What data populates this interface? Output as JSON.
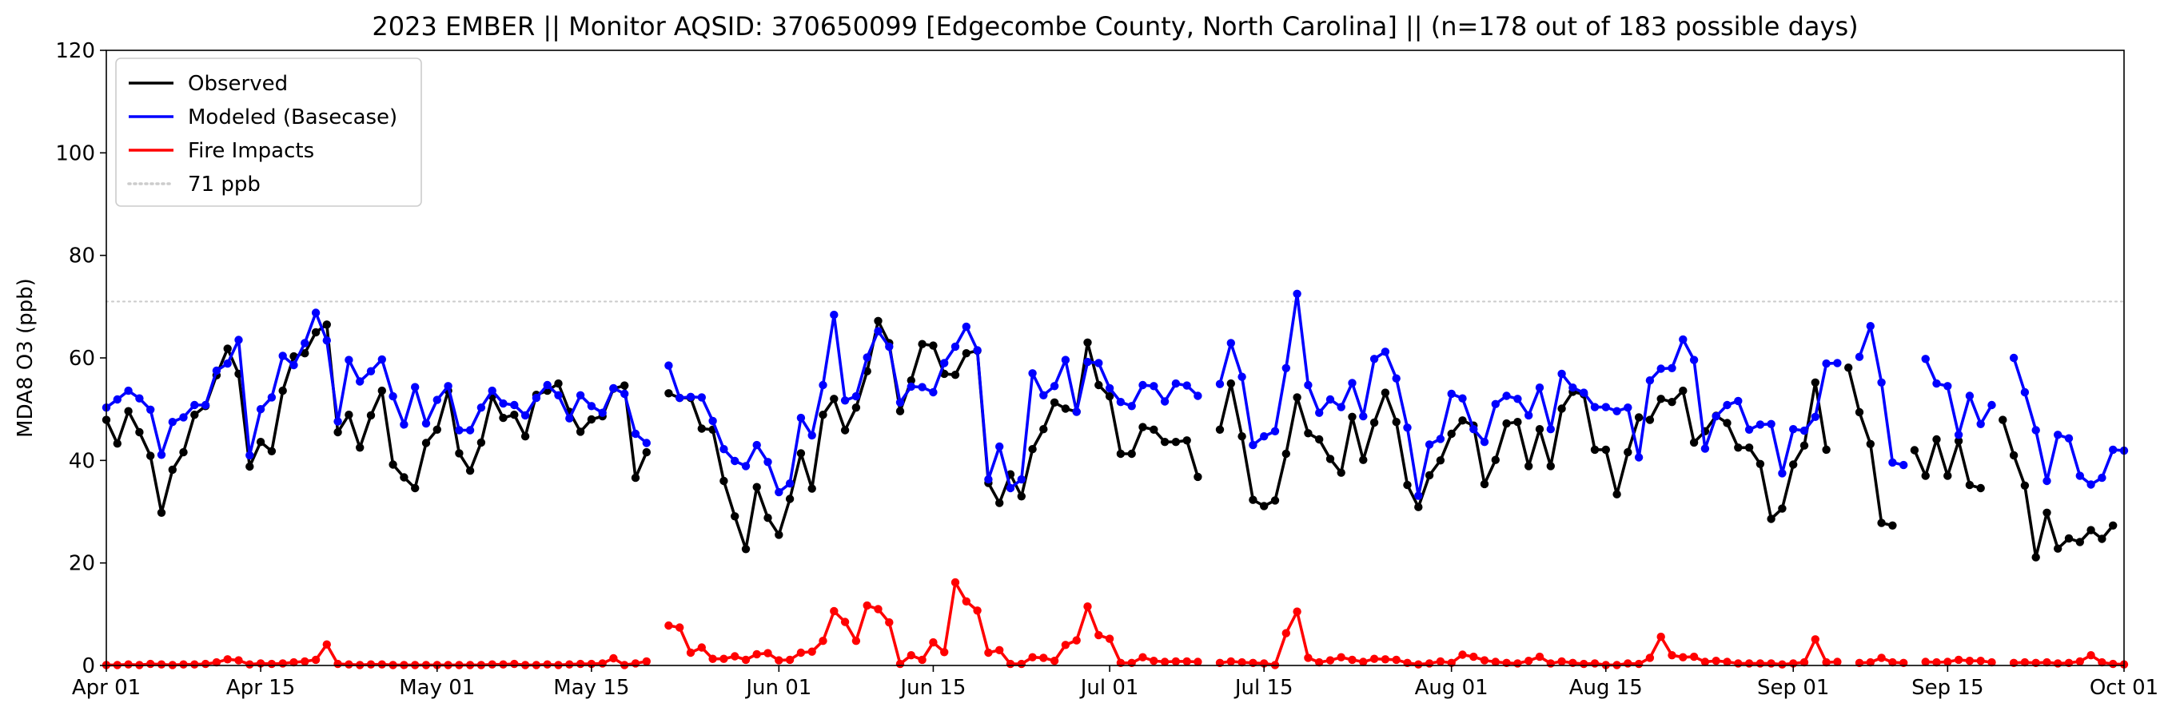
{
  "chart_data": {
    "type": "line",
    "title": "2023 EMBER || Monitor AQSID: 370650099 [Edgecombe County, North Carolina] || (n=178 out of 183 possible days)",
    "xlabel": "",
    "ylabel": "MDA8 O3 (ppb)",
    "ylim": [
      0,
      120
    ],
    "yticks": [
      0,
      20,
      40,
      60,
      80,
      100,
      120
    ],
    "xlim": [
      "2023-04-01",
      "2023-10-01"
    ],
    "xticks": [
      "Apr 01",
      "Apr 15",
      "May 01",
      "May 15",
      "Jun 01",
      "Jun 15",
      "Jul 01",
      "Jul 15",
      "Aug 01",
      "Aug 15",
      "Sep 01",
      "Sep 15",
      "Oct 01"
    ],
    "xtick_dates": [
      "2023-04-01",
      "2023-04-15",
      "2023-05-01",
      "2023-05-15",
      "2023-06-01",
      "2023-06-15",
      "2023-07-01",
      "2023-07-15",
      "2023-08-01",
      "2023-08-15",
      "2023-09-01",
      "2023-09-15",
      "2023-10-01"
    ],
    "grid": false,
    "legend_position": "top-left",
    "x_start_date": "2023-04-01",
    "reference_line": {
      "name": "71 ppb",
      "value": 71,
      "color": "#cccccc"
    },
    "series": [
      {
        "name": "Observed",
        "color": "#000000",
        "values": [
          47.9,
          43.3,
          49.6,
          45.5,
          40.9,
          29.8,
          38.2,
          41.6,
          48.9,
          50.6,
          56.6,
          61.8,
          56.9,
          38.8,
          43.6,
          41.8,
          53.6,
          60.3,
          60.9,
          65.0,
          66.5,
          45.5,
          48.9,
          42.5,
          48.8,
          53.6,
          39.2,
          36.7,
          34.6,
          43.4,
          46.0,
          53.6,
          41.4,
          38.0,
          43.5,
          52.5,
          48.3,
          48.9,
          44.7,
          52.8,
          53.6,
          55.0,
          49.5,
          45.6,
          48.0,
          48.6,
          54.0,
          54.6,
          36.6,
          41.6,
          null,
          53.1,
          52.2,
          52.2,
          46.2,
          46.0,
          36.0,
          29.1,
          22.7,
          34.8,
          28.8,
          25.5,
          32.5,
          41.4,
          34.5,
          48.9,
          52.0,
          45.9,
          50.3,
          57.4,
          67.2,
          62.9,
          49.6,
          55.6,
          62.7,
          62.4,
          56.9,
          56.7,
          60.9,
          61.4,
          35.6,
          31.7,
          37.3,
          33.0,
          42.2,
          46.1,
          51.3,
          50.1,
          49.5,
          63.0,
          54.7,
          52.5,
          41.3,
          41.3,
          46.5,
          46.0,
          43.6,
          43.6,
          43.9,
          36.8,
          null,
          46.0,
          55.0,
          44.7,
          32.3,
          31.1,
          32.2,
          41.3,
          52.3,
          45.3,
          44.1,
          40.3,
          37.6,
          48.5,
          40.1,
          47.4,
          53.2,
          47.5,
          35.2,
          30.9,
          37.1,
          40.0,
          45.2,
          47.8,
          46.8,
          35.4,
          40.1,
          47.2,
          47.5,
          38.9,
          46.1,
          38.9,
          50.1,
          53.4,
          52.9,
          42.1,
          42.1,
          33.4,
          41.6,
          48.4,
          47.9,
          52.0,
          51.4,
          53.6,
          43.5,
          45.7,
          48.7,
          47.3,
          42.5,
          42.5,
          39.3,
          28.6,
          30.6,
          39.2,
          42.9,
          55.2,
          42.1,
          null,
          58.1,
          49.4,
          43.2,
          27.8,
          27.3,
          null,
          42.0,
          37.0,
          44.1,
          37.0,
          43.8,
          35.2,
          34.6,
          null,
          47.9,
          41.0,
          35.1,
          21.1,
          29.8,
          22.8,
          24.8,
          24.1,
          26.4,
          24.7,
          27.3
        ]
      },
      {
        "name": "Modeled (Basecase)",
        "color": "#0000ff",
        "values": [
          50.3,
          51.9,
          53.6,
          52.1,
          49.9,
          41.1,
          47.5,
          48.4,
          50.8,
          50.8,
          57.5,
          58.9,
          63.5,
          41.0,
          50.0,
          52.3,
          60.4,
          58.6,
          62.9,
          68.8,
          63.4,
          47.6,
          59.6,
          55.4,
          57.4,
          59.7,
          52.5,
          47.0,
          54.3,
          47.2,
          51.8,
          54.5,
          45.9,
          45.9,
          50.3,
          53.6,
          51.1,
          50.8,
          48.8,
          52.2,
          54.7,
          52.7,
          48.2,
          52.7,
          50.6,
          49.3,
          54.1,
          53.0,
          45.2,
          43.4,
          null,
          58.5,
          52.2,
          52.4,
          52.3,
          47.7,
          42.2,
          39.9,
          38.9,
          43.0,
          39.7,
          33.8,
          35.5,
          48.3,
          44.9,
          54.7,
          68.4,
          51.7,
          52.5,
          60.1,
          65.2,
          62.2,
          51.3,
          54.4,
          54.3,
          53.3,
          59.0,
          62.2,
          66.1,
          61.5,
          36.3,
          42.7,
          34.6,
          36.3,
          57.0,
          52.7,
          54.5,
          59.6,
          49.5,
          59.2,
          59.0,
          54.1,
          51.4,
          50.6,
          54.7,
          54.5,
          51.5,
          55.0,
          54.6,
          52.6,
          null,
          54.9,
          62.9,
          56.3,
          43.0,
          44.7,
          45.7,
          58.0,
          72.5,
          54.7,
          49.3,
          51.9,
          50.4,
          55.1,
          48.6,
          59.8,
          61.2,
          56.0,
          46.4,
          33.1,
          43.1,
          44.2,
          53.0,
          52.1,
          46.1,
          43.6,
          51.0,
          52.6,
          52.0,
          48.8,
          54.2,
          46.1,
          56.9,
          54.2,
          53.2,
          50.4,
          50.4,
          49.6,
          50.3,
          40.6,
          55.6,
          57.9,
          58.0,
          63.6,
          59.6,
          42.3,
          48.6,
          50.8,
          51.6,
          46.0,
          47.0,
          47.1,
          37.5,
          46.1,
          45.8,
          48.5,
          58.9,
          59.0,
          null,
          60.2,
          66.2,
          55.2,
          39.6,
          39.1,
          null,
          59.8,
          55.0,
          54.5,
          45.0,
          52.6,
          47.1,
          50.8,
          null,
          60.0,
          53.3,
          45.9,
          36.0,
          45.0,
          44.3,
          37.0,
          35.3,
          36.6,
          42.1,
          41.9
        ]
      },
      {
        "name": "Fire Impacts",
        "color": "#ff0000",
        "values": [
          0.1,
          0.1,
          0.2,
          0.1,
          0.3,
          0.2,
          0.1,
          0.2,
          0.2,
          0.3,
          0.6,
          1.2,
          1.0,
          0.2,
          0.4,
          0.3,
          0.4,
          0.6,
          0.8,
          1.1,
          4.1,
          0.3,
          0.2,
          0.1,
          0.2,
          0.2,
          0.1,
          0.1,
          0.1,
          0.1,
          0.1,
          0.1,
          0.1,
          0.1,
          0.1,
          0.2,
          0.2,
          0.3,
          0.1,
          0.1,
          0.2,
          0.1,
          0.2,
          0.3,
          0.3,
          0.4,
          1.4,
          0.1,
          0.4,
          0.8,
          null,
          7.8,
          7.4,
          2.5,
          3.5,
          1.3,
          1.3,
          1.8,
          1.1,
          2.2,
          2.4,
          1.0,
          1.1,
          2.5,
          2.7,
          4.8,
          10.6,
          8.5,
          4.8,
          11.7,
          11.0,
          8.4,
          0.3,
          2.0,
          1.1,
          4.5,
          2.6,
          16.2,
          12.5,
          10.7,
          2.5,
          3.0,
          0.3,
          0.3,
          1.6,
          1.5,
          0.9,
          4.0,
          4.9,
          11.5,
          5.9,
          5.2,
          0.5,
          0.5,
          1.6,
          0.9,
          0.7,
          0.8,
          0.8,
          0.7,
          null,
          0.5,
          0.8,
          0.6,
          0.5,
          0.4,
          0.1,
          6.3,
          10.5,
          1.5,
          0.6,
          1.0,
          1.6,
          1.1,
          0.7,
          1.3,
          1.2,
          1.1,
          0.5,
          0.2,
          0.4,
          0.8,
          0.5,
          2.1,
          1.7,
          1.0,
          0.7,
          0.5,
          0.4,
          0.9,
          1.7,
          0.4,
          0.8,
          0.5,
          0.3,
          0.4,
          0.1,
          0.1,
          0.4,
          0.3,
          1.5,
          5.6,
          2.0,
          1.6,
          1.7,
          0.7,
          0.9,
          0.7,
          0.4,
          0.4,
          0.4,
          0.4,
          0.2,
          0.4,
          0.6,
          5.1,
          0.6,
          0.7,
          null,
          0.5,
          0.6,
          1.5,
          0.6,
          0.5,
          null,
          0.7,
          0.6,
          0.7,
          1.1,
          0.9,
          0.9,
          0.6,
          null,
          0.5,
          0.6,
          0.5,
          0.6,
          0.4,
          0.5,
          0.8,
          2.0,
          0.6,
          0.3,
          0.2
        ]
      }
    ]
  }
}
